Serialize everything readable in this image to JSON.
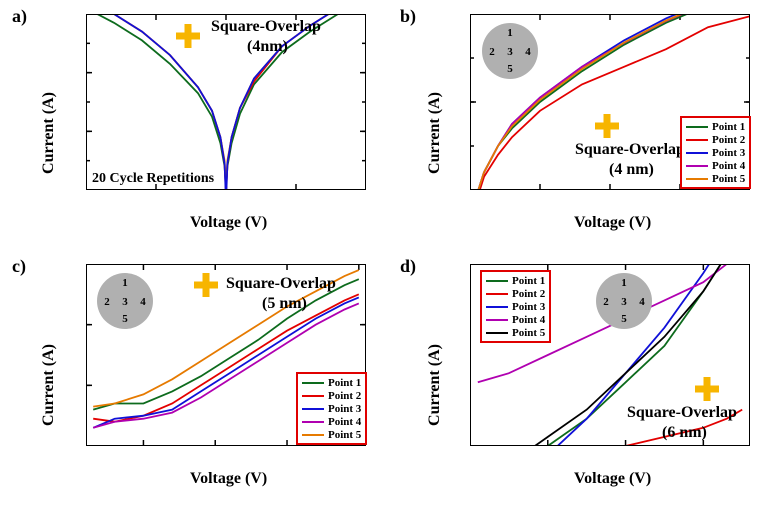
{
  "colors": {
    "point1": "#0d6b1d",
    "point2": "#e30000",
    "point3": "#1010d8",
    "point4": "#b000b0",
    "point5": "#e67a00",
    "point5_black": "#000000",
    "cross": "#f7b500",
    "legend_border": "#e00000",
    "probe_fill": "#b0b0b0"
  },
  "panel_a": {
    "label": "a)",
    "title_line1": "Square-Overlap",
    "title_line2": "(4nm)",
    "footer": "20 Cycle Repetitions",
    "xlabel": "Voltage (V)",
    "ylabel": "Current (A)",
    "xlim": [
      -2,
      2
    ],
    "xtick_step": 1,
    "ylog": true,
    "y_exp_min": -14,
    "y_exp_max": -8,
    "y_exp_step": 2,
    "series_voltage": [
      -2,
      -1.6,
      -1.2,
      -0.8,
      -0.4,
      -0.2,
      -0.08,
      -0.02,
      0,
      0.02,
      0.08,
      0.2,
      0.4,
      0.8,
      1.2,
      1.6,
      2
    ],
    "series": [
      {
        "name": "rep-green",
        "color": "#0d6b1d",
        "exps": [
          -7.8,
          -8.3,
          -8.9,
          -9.7,
          -10.7,
          -11.5,
          -12.4,
          -13.2,
          -14.0,
          -13.2,
          -12.4,
          -11.4,
          -10.4,
          -9.3,
          -8.6,
          -8.0,
          -7.6
        ]
      },
      {
        "name": "rep-red",
        "color": "#e30000",
        "exps": [
          -7.5,
          -8.0,
          -8.6,
          -9.4,
          -10.5,
          -11.3,
          -12.2,
          -13.1,
          -14.2,
          -13.1,
          -12.2,
          -11.2,
          -10.3,
          -9.1,
          -8.4,
          -7.8,
          -7.45
        ]
      },
      {
        "name": "rep-orange",
        "color": "#e67a00",
        "exps": [
          -7.5,
          -8.0,
          -8.6,
          -9.4,
          -10.5,
          -11.3,
          -12.2,
          -13.0,
          -14.0,
          -13.0,
          -12.2,
          -11.2,
          -10.2,
          -9.1,
          -8.4,
          -7.8,
          -7.45
        ]
      },
      {
        "name": "rep-blue",
        "color": "#1010d8",
        "exps": [
          -7.5,
          -8.0,
          -8.6,
          -9.4,
          -10.5,
          -11.3,
          -12.2,
          -13.1,
          -14.4,
          -13.1,
          -12.2,
          -11.2,
          -10.2,
          -9.1,
          -8.4,
          -7.8,
          -7.45
        ]
      }
    ],
    "cross_pos": [
      0.33,
      0.18
    ]
  },
  "panel_b": {
    "label": "b)",
    "title_line1": "Square-Overlap",
    "title_line2": "(4 nm)",
    "xlabel": "Voltage (V)",
    "ylabel": "Current (A)",
    "xlim": [
      0,
      2
    ],
    "xtick_step": 0.5,
    "ylog": true,
    "y_exp_min": -12,
    "y_exp_max": -8,
    "y_exp_step": 2,
    "series_voltage": [
      0.02,
      0.06,
      0.1,
      0.2,
      0.3,
      0.5,
      0.8,
      1.1,
      1.4,
      1.7,
      2.0
    ],
    "series": [
      {
        "name": "Point 1",
        "color": "#0d6b1d",
        "exps": [
          -12.8,
          -12.0,
          -11.6,
          -11.0,
          -10.6,
          -10.0,
          -9.3,
          -8.7,
          -8.2,
          -7.8,
          -7.5
        ]
      },
      {
        "name": "Point 2",
        "color": "#e30000",
        "exps": [
          -12.8,
          -12.1,
          -11.7,
          -11.2,
          -10.8,
          -10.2,
          -9.6,
          -9.2,
          -8.8,
          -8.3,
          -8.05
        ]
      },
      {
        "name": "Point 3",
        "color": "#1010d8",
        "exps": [
          -12.6,
          -12.0,
          -11.6,
          -11.0,
          -10.5,
          -9.9,
          -9.2,
          -8.6,
          -8.1,
          -7.7,
          -7.4
        ]
      },
      {
        "name": "Point 4",
        "color": "#b000b0",
        "exps": [
          -12.7,
          -12.0,
          -11.6,
          -11.0,
          -10.5,
          -9.9,
          -9.2,
          -8.66,
          -8.16,
          -7.76,
          -7.46
        ]
      },
      {
        "name": "Point 5",
        "color": "#e67a00",
        "exps": [
          -12.7,
          -12.0,
          -11.6,
          -11.0,
          -10.55,
          -9.95,
          -9.25,
          -8.65,
          -8.15,
          -7.75,
          -7.45
        ]
      }
    ],
    "cross_pos": [
      0.48,
      0.7
    ],
    "probe_pos": [
      0.15,
      0.18
    ],
    "legend_pos": "br"
  },
  "panel_c": {
    "label": "c)",
    "title_line1": "Square-Overlap",
    "title_line2": "(5 nm)",
    "xlabel": "Voltage (V)",
    "ylabel": "Current (A)",
    "xlim": [
      0.1,
      2.05
    ],
    "xticks": [
      0.5,
      1.0,
      1.5,
      2.0
    ],
    "ylog": true,
    "y_exp_min": -14,
    "y_exp_max": -11,
    "y_exp_step": 1,
    "series_voltage": [
      0.15,
      0.3,
      0.5,
      0.7,
      0.9,
      1.1,
      1.3,
      1.5,
      1.7,
      1.9,
      2.0
    ],
    "series": [
      {
        "name": "Point 1",
        "color": "#0d6b1d",
        "exps": [
          -13.4,
          -13.3,
          -13.3,
          -13.1,
          -12.85,
          -12.55,
          -12.25,
          -11.9,
          -11.6,
          -11.35,
          -11.25
        ]
      },
      {
        "name": "Point 2",
        "color": "#e30000",
        "exps": [
          -13.55,
          -13.6,
          -13.5,
          -13.3,
          -13.0,
          -12.7,
          -12.4,
          -12.1,
          -11.85,
          -11.6,
          -11.5
        ]
      },
      {
        "name": "Point 3",
        "color": "#1010d8",
        "exps": [
          -13.7,
          -13.55,
          -13.5,
          -13.4,
          -13.1,
          -12.8,
          -12.5,
          -12.2,
          -11.9,
          -11.65,
          -11.55
        ]
      },
      {
        "name": "Point 4",
        "color": "#b000b0",
        "exps": [
          -13.7,
          -13.6,
          -13.55,
          -13.45,
          -13.2,
          -12.9,
          -12.6,
          -12.3,
          -12.0,
          -11.75,
          -11.65
        ]
      },
      {
        "name": "Point 5",
        "color": "#e67a00",
        "exps": [
          -13.35,
          -13.3,
          -13.15,
          -12.9,
          -12.6,
          -12.3,
          -12.0,
          -11.7,
          -11.45,
          -11.2,
          -11.1
        ]
      }
    ],
    "cross_pos": [
      0.41,
      0.16
    ],
    "probe_pos": [
      0.13,
      0.2
    ],
    "legend_pos": "br"
  },
  "panel_d": {
    "label": "d)",
    "title_line1": "Square-Overlap",
    "title_line2": "(6 nm)",
    "xlabel": "Voltage (V)",
    "ylabel": "Current (A)",
    "xlim": [
      0,
      3.6
    ],
    "xticks": [
      0,
      1,
      2,
      3
    ],
    "ylog": true,
    "y_exp_min": -13,
    "y_exp_max": -12,
    "y_exp_step": 1,
    "series_voltage": [
      0.1,
      0.5,
      1.0,
      1.5,
      2.0,
      2.5,
      3.0,
      3.3,
      3.5
    ],
    "series": [
      {
        "name": "Point 1",
        "color": "#0d6b1d",
        "exps": [
          -13.3,
          -13.2,
          -13.0,
          -12.85,
          -12.65,
          -12.45,
          -12.15,
          -11.95,
          -11.85
        ]
      },
      {
        "name": "Point 2",
        "color": "#e30000",
        "exps": [
          -13.35,
          -13.3,
          -13.2,
          -13.1,
          -13.0,
          -12.95,
          -12.9,
          -12.85,
          -12.8
        ]
      },
      {
        "name": "Point 3",
        "color": "#1010d8",
        "exps": [
          -13.3,
          -13.25,
          -13.05,
          -12.85,
          -12.6,
          -12.35,
          -12.05,
          -11.85,
          -11.7
        ]
      },
      {
        "name": "Point 4",
        "color": "#b000b0",
        "exps": [
          -12.65,
          -12.6,
          -12.5,
          -12.4,
          -12.3,
          -12.2,
          -12.1,
          -12.0,
          -11.9
        ]
      },
      {
        "name": "Point 5",
        "color": "#000000",
        "exps": [
          -13.2,
          -13.1,
          -12.95,
          -12.8,
          -12.6,
          -12.4,
          -12.15,
          -11.95,
          -11.8
        ]
      }
    ],
    "cross_pos": [
      0.82,
      0.7
    ],
    "probe_pos": [
      0.56,
      0.18
    ],
    "legend_pos": "tl"
  },
  "legend_labels": [
    "Point 1",
    "Point 2",
    "Point 3",
    "Point 4",
    "Point 5"
  ],
  "probe_labels": [
    "1",
    "2",
    "3",
    "4",
    "5"
  ]
}
